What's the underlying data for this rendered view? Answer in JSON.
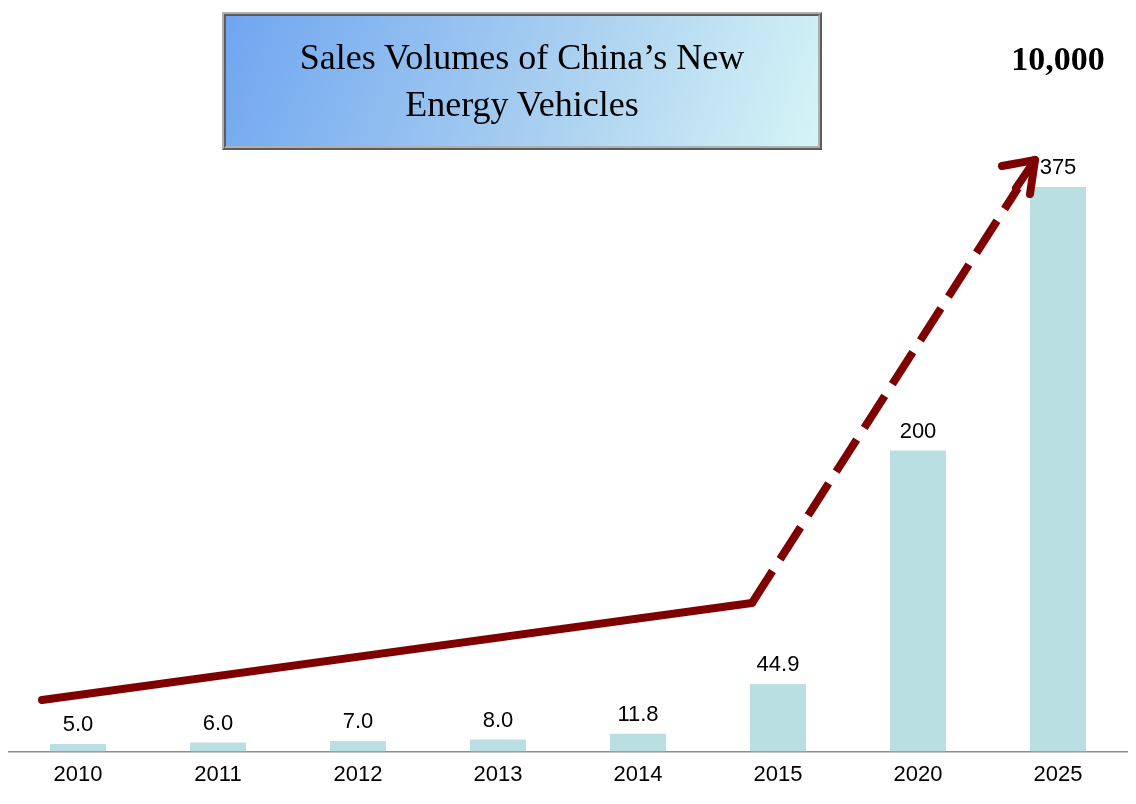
{
  "chart_data": {
    "type": "bar",
    "title": "Sales Volumes of China’s New Energy Vehicles",
    "categories": [
      "2010",
      "2011",
      "2012",
      "2013",
      "2014",
      "2015",
      "2020",
      "2025"
    ],
    "values": [
      5.0,
      6.0,
      7.0,
      8.0,
      11.8,
      44.9,
      200,
      375
    ],
    "value_labels": [
      "5.0",
      "6.0",
      "7.0",
      "8.0",
      "11.8",
      "44.9",
      "200",
      "375"
    ],
    "color": "#b9dfe3",
    "annotations": [
      "10,000"
    ],
    "grid": false,
    "legend": false
  }
}
